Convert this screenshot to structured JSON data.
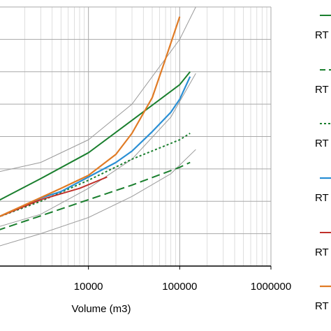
{
  "chart_data": {
    "type": "line",
    "title": "",
    "xlabel": "Volume (m3)",
    "ylabel": "",
    "x_scale": "log",
    "xlim": [
      1000,
      1000000
    ],
    "ylim": [
      0,
      8
    ],
    "x_ticks": [
      {
        "value": 10000,
        "label": "10000"
      },
      {
        "value": 100000,
        "label": "100000"
      },
      {
        "value": 1000000,
        "label": "1000000"
      }
    ],
    "grid": true,
    "legend_position": "right",
    "series": [
      {
        "name": "RT",
        "color": "#1a7f2e",
        "style": "solid",
        "width": 2,
        "points": [
          [
            1000,
            2.0
          ],
          [
            3000,
            2.7
          ],
          [
            10000,
            3.5
          ],
          [
            30000,
            4.5
          ],
          [
            100000,
            5.6
          ],
          [
            130000,
            6.0
          ]
        ]
      },
      {
        "name": "RT",
        "color": "#1a7f2e",
        "style": "dashed",
        "width": 2,
        "points": [
          [
            1000,
            1.1
          ],
          [
            3000,
            1.55
          ],
          [
            10000,
            2.05
          ],
          [
            30000,
            2.5
          ],
          [
            100000,
            3.05
          ],
          [
            130000,
            3.2
          ]
        ]
      },
      {
        "name": "RT",
        "color": "#1a7f2e",
        "style": "dotted",
        "width": 2,
        "points": [
          [
            1000,
            1.5
          ],
          [
            3000,
            2.0
          ],
          [
            10000,
            2.65
          ],
          [
            30000,
            3.3
          ],
          [
            100000,
            3.9
          ],
          [
            130000,
            4.1
          ]
        ]
      },
      {
        "name": "RT",
        "color": "#2a8fd4",
        "style": "solid",
        "width": 2.2,
        "points": [
          [
            1000,
            1.5
          ],
          [
            3000,
            2.1
          ],
          [
            5000,
            2.3
          ],
          [
            10000,
            2.75
          ],
          [
            20000,
            3.2
          ],
          [
            30000,
            3.55
          ],
          [
            50000,
            4.15
          ],
          [
            80000,
            4.75
          ],
          [
            100000,
            5.15
          ],
          [
            130000,
            5.85
          ]
        ]
      },
      {
        "name": "RT",
        "color": "#c0302a",
        "style": "solid",
        "width": 2,
        "points": [
          [
            1000,
            1.5
          ],
          [
            3000,
            2.05
          ],
          [
            8000,
            2.4
          ],
          [
            16000,
            2.75
          ]
        ]
      },
      {
        "name": "RT",
        "color": "#e07b25",
        "style": "solid",
        "width": 2.2,
        "points": [
          [
            1000,
            1.5
          ],
          [
            5000,
            2.4
          ],
          [
            10000,
            2.8
          ],
          [
            20000,
            3.45
          ],
          [
            30000,
            4.1
          ],
          [
            50000,
            5.2
          ],
          [
            70000,
            6.4
          ],
          [
            100000,
            7.7
          ]
        ]
      }
    ],
    "bounds": [
      {
        "color": "#9a9a9a",
        "points": [
          [
            1000,
            2.9
          ],
          [
            3000,
            3.2
          ],
          [
            10000,
            3.9
          ],
          [
            30000,
            5.0
          ],
          [
            100000,
            7.0
          ],
          [
            150000,
            8.0
          ]
        ]
      },
      {
        "color": "#9a9a9a",
        "points": [
          [
            1000,
            1.2
          ],
          [
            3000,
            1.6
          ],
          [
            10000,
            2.4
          ],
          [
            30000,
            3.3
          ],
          [
            80000,
            4.6
          ],
          [
            150000,
            5.95
          ]
        ]
      },
      {
        "color": "#9a9a9a",
        "points": [
          [
            1000,
            0.6
          ],
          [
            3000,
            1.0
          ],
          [
            10000,
            1.5
          ],
          [
            30000,
            2.15
          ],
          [
            80000,
            2.85
          ],
          [
            150000,
            3.6
          ]
        ]
      }
    ]
  }
}
